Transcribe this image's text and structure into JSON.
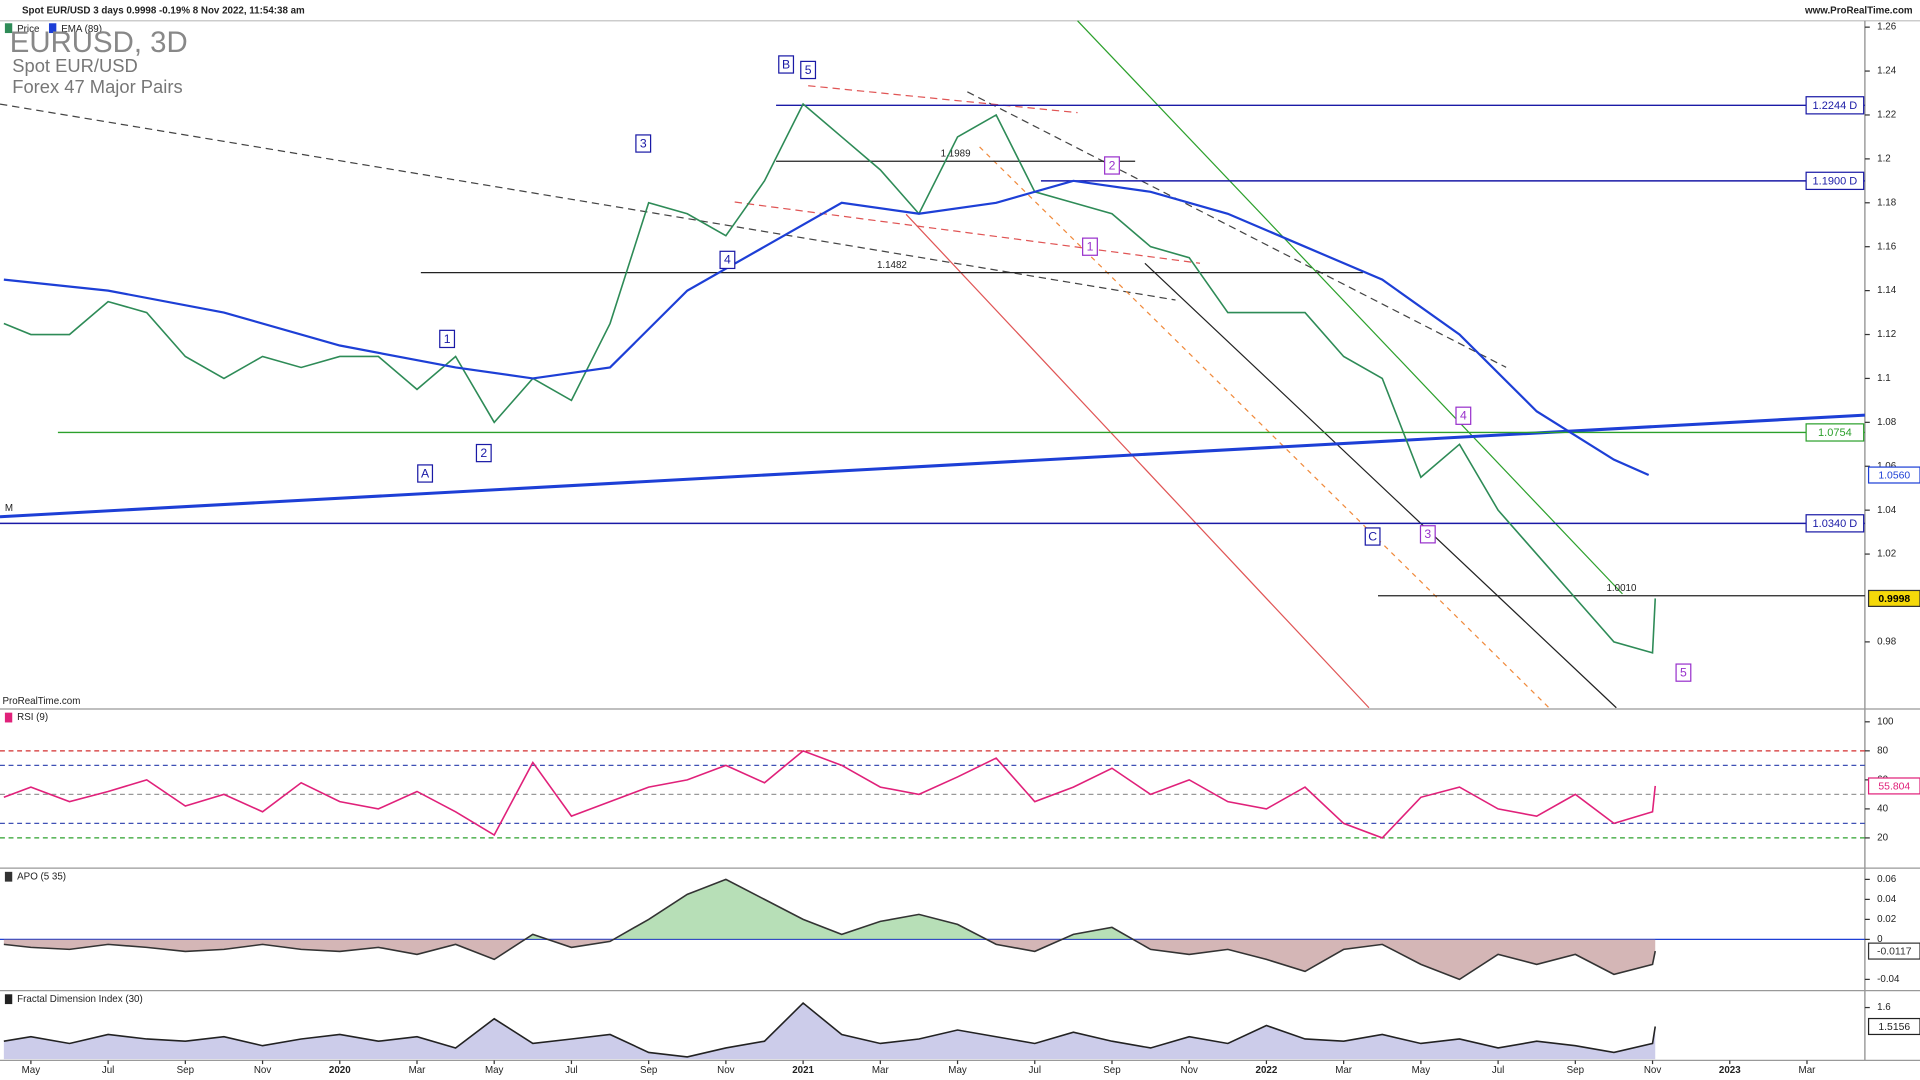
{
  "header": {
    "title": "Spot EUR/USD 3 days 0.9998 -0.19% 8 Nov 2022, 11:54:38 am",
    "site": "www.ProRealTime.com"
  },
  "chart_data": [
    {
      "type": "line",
      "title": "EURUSD, 3D",
      "subtitle": "Spot EUR/USD",
      "exchange": "Forex 47 Major Pairs",
      "watermark": "ProRealTime.com",
      "marker": "M",
      "xlim": [
        3.2,
        51.5
      ],
      "xticks": [
        {
          "value": 4,
          "label": "May"
        },
        {
          "value": 6,
          "label": "Jul"
        },
        {
          "value": 8,
          "label": "Sep"
        },
        {
          "value": 10,
          "label": "Nov"
        },
        {
          "value": 12,
          "label": "2020"
        },
        {
          "value": 14,
          "label": "Mar"
        },
        {
          "value": 16,
          "label": "May"
        },
        {
          "value": 18,
          "label": "Jul"
        },
        {
          "value": 20,
          "label": "Sep"
        },
        {
          "value": 22,
          "label": "Nov"
        },
        {
          "value": 24,
          "label": "2021"
        },
        {
          "value": 26,
          "label": "Mar"
        },
        {
          "value": 28,
          "label": "May"
        },
        {
          "value": 30,
          "label": "Jul"
        },
        {
          "value": 32,
          "label": "Sep"
        },
        {
          "value": 34,
          "label": "Nov"
        },
        {
          "value": 36,
          "label": "2022"
        },
        {
          "value": 38,
          "label": "Mar"
        },
        {
          "value": 40,
          "label": "May"
        },
        {
          "value": 42,
          "label": "Jul"
        },
        {
          "value": 44,
          "label": "Sep"
        },
        {
          "value": 46,
          "label": "Nov"
        },
        {
          "value": 48,
          "label": "2023"
        },
        {
          "value": 50,
          "label": "Mar"
        }
      ],
      "ylim": [
        0.95,
        1.264
      ],
      "yticks": [
        0.98,
        1.02,
        1.04,
        1.06,
        1.08,
        1.1,
        1.12,
        1.14,
        1.16,
        1.18,
        1.2,
        1.22,
        1.24,
        1.26
      ],
      "series": [
        {
          "name": "Price",
          "color": "#2e8b57",
          "highlight": "#f5d90a",
          "last_label": "0.9998",
          "x": [
            3.3,
            4,
            5,
            6,
            7,
            8,
            9,
            10,
            11,
            12,
            13,
            14,
            15,
            16,
            17,
            18,
            19,
            20,
            21,
            22,
            23,
            24,
            25,
            26,
            27,
            28,
            29,
            30,
            31,
            32,
            33,
            34,
            35,
            36,
            37,
            38,
            39,
            40,
            41,
            42,
            43,
            44,
            45,
            46,
            46.07
          ],
          "values": [
            1.125,
            1.12,
            1.12,
            1.135,
            1.13,
            1.11,
            1.1,
            1.11,
            1.105,
            1.11,
            1.11,
            1.095,
            1.11,
            1.08,
            1.1,
            1.09,
            1.125,
            1.18,
            1.175,
            1.165,
            1.19,
            1.225,
            1.21,
            1.195,
            1.175,
            1.21,
            1.22,
            1.185,
            1.18,
            1.175,
            1.16,
            1.155,
            1.13,
            1.13,
            1.13,
            1.11,
            1.1,
            1.055,
            1.07,
            1.04,
            1.02,
            1.0,
            0.98,
            0.975,
            0.9998
          ]
        },
        {
          "name": "EMA (89)",
          "color": "#1d3fd6",
          "last_label": "1.0560",
          "x": [
            3.3,
            6,
            9,
            12,
            15,
            17,
            19,
            21,
            23,
            25,
            27,
            29,
            31,
            33,
            35,
            37,
            39,
            41,
            43,
            45,
            45.9
          ],
          "values": [
            1.145,
            1.14,
            1.13,
            1.115,
            1.105,
            1.1,
            1.105,
            1.14,
            1.16,
            1.18,
            1.175,
            1.18,
            1.19,
            1.185,
            1.175,
            1.16,
            1.145,
            1.12,
            1.085,
            1.063,
            1.056
          ]
        }
      ],
      "levels": [
        {
          "value": 1.2244,
          "label": "1.2244 D",
          "color": "#1a1aa6",
          "from": 23.3
        },
        {
          "value": 1.19,
          "label": "1.1900 D",
          "color": "#1a1aa6",
          "from": 30.16
        },
        {
          "value": 1.034,
          "label": "1.0340 D",
          "color": "#1a1aa6"
        },
        {
          "value": 1.0754,
          "label": "1.0754",
          "color": "#2ca02c",
          "from": 4.7
        }
      ],
      "annotations": [
        {
          "text": "A",
          "x": 14.21,
          "y": 1.0567,
          "color": "#1a1aa6"
        },
        {
          "text": "1",
          "x": 14.78,
          "y": 1.118,
          "color": "#1a1aa6"
        },
        {
          "text": "2",
          "x": 15.73,
          "y": 1.066,
          "color": "#1a1aa6"
        },
        {
          "text": "3",
          "x": 19.86,
          "y": 1.207,
          "color": "#1a1aa6"
        },
        {
          "text": "4",
          "x": 22.04,
          "y": 1.154,
          "color": "#1a1aa6"
        },
        {
          "text": "B",
          "x": 23.56,
          "y": 1.243,
          "color": "#1a1aa6"
        },
        {
          "text": "5",
          "x": 24.13,
          "y": 1.2405,
          "color": "#1a1aa6"
        },
        {
          "text": "1",
          "x": 31.43,
          "y": 1.16,
          "color": "#9932cc"
        },
        {
          "text": "2",
          "x": 32.0,
          "y": 1.197,
          "color": "#9932cc"
        },
        {
          "text": "C",
          "x": 38.75,
          "y": 1.028,
          "color": "#1a1aa6"
        },
        {
          "text": "3",
          "x": 40.18,
          "y": 1.029,
          "color": "#9932cc"
        },
        {
          "text": "4",
          "x": 41.1,
          "y": 1.083,
          "color": "#9932cc"
        },
        {
          "text": "5",
          "x": 46.8,
          "y": 0.966,
          "color": "#9932cc"
        }
      ],
      "segments": [
        {
          "text": "1.1989",
          "value": 1.1989,
          "from": 23.3,
          "to": 32.6
        },
        {
          "text": "1.1482",
          "value": 1.1482,
          "from": 14.1,
          "to": 38.5
        },
        {
          "text": "1.0010",
          "value": 1.001,
          "from": 38.89,
          "to": 51.5
        }
      ]
    },
    {
      "type": "line",
      "title": "RSI (9)",
      "ylim": [
        0,
        108
      ],
      "yticks": [
        20,
        40,
        60,
        80,
        100
      ],
      "reference_lines": [
        {
          "value": 80,
          "color": "#d32f2f"
        },
        {
          "value": 70,
          "color": "#3f51b5"
        },
        {
          "value": 50,
          "color": "#999999"
        },
        {
          "value": 30,
          "color": "#3f51b5"
        },
        {
          "value": 20,
          "color": "#2ca02c"
        }
      ],
      "series": [
        {
          "name": "RSI",
          "color": "#e0217a",
          "last_label": "55.804",
          "x": [
            3.3,
            4,
            5,
            6,
            7,
            8,
            9,
            10,
            11,
            12,
            13,
            14,
            15,
            16,
            17,
            18,
            19,
            20,
            21,
            22,
            23,
            24,
            25,
            26,
            27,
            28,
            29,
            30,
            31,
            32,
            33,
            34,
            35,
            36,
            37,
            38,
            39,
            40,
            41,
            42,
            43,
            44,
            45,
            46,
            46.07
          ],
          "values": [
            48,
            55,
            45,
            52,
            60,
            42,
            50,
            38,
            58,
            45,
            40,
            52,
            38,
            22,
            72,
            35,
            45,
            55,
            60,
            70,
            58,
            80,
            70,
            55,
            50,
            62,
            75,
            45,
            55,
            68,
            50,
            60,
            45,
            40,
            55,
            30,
            20,
            48,
            55,
            40,
            35,
            50,
            30,
            38,
            55.804
          ]
        }
      ]
    },
    {
      "type": "area",
      "title": "APO (5 35)",
      "ylim": [
        -0.05,
        0.07
      ],
      "yticks": [
        -0.04,
        0,
        0.02,
        0.04,
        0.06
      ],
      "reference_lines": [
        {
          "value": 0,
          "color": "#1d3fd6"
        }
      ],
      "series": [
        {
          "name": "APO",
          "color": "#333333",
          "fill_positive": "#7cc47c",
          "fill_negative": "#b07a7a",
          "last_label": "-0.0117",
          "x": [
            3.3,
            4,
            5,
            6,
            7,
            8,
            9,
            10,
            11,
            12,
            13,
            14,
            15,
            16,
            17,
            18,
            19,
            20,
            21,
            22,
            23,
            24,
            25,
            26,
            27,
            28,
            29,
            30,
            31,
            32,
            33,
            34,
            35,
            36,
            37,
            38,
            39,
            40,
            41,
            42,
            43,
            44,
            45,
            46,
            46.07
          ],
          "values": [
            -0.005,
            -0.008,
            -0.01,
            -0.005,
            -0.008,
            -0.012,
            -0.01,
            -0.005,
            -0.01,
            -0.012,
            -0.008,
            -0.015,
            -0.005,
            -0.02,
            0.005,
            -0.008,
            -0.002,
            0.02,
            0.045,
            0.06,
            0.04,
            0.02,
            0.005,
            0.018,
            0.025,
            0.015,
            -0.005,
            -0.012,
            0.005,
            0.012,
            -0.01,
            -0.015,
            -0.01,
            -0.02,
            -0.032,
            -0.01,
            -0.005,
            -0.025,
            -0.04,
            -0.015,
            -0.025,
            -0.015,
            -0.035,
            -0.025,
            -0.0117
          ]
        }
      ]
    },
    {
      "type": "area",
      "title": "Fractal Dimension Index (30)",
      "ylim": [
        1.37,
        1.67
      ],
      "yticks": [
        1.6
      ],
      "series": [
        {
          "name": "FDI",
          "color": "#222222",
          "fill": "#8f8fd0",
          "last_label": "1.5156",
          "x": [
            3.3,
            4,
            5,
            6,
            7,
            8,
            9,
            10,
            11,
            12,
            13,
            14,
            15,
            16,
            17,
            18,
            19,
            20,
            21,
            22,
            23,
            24,
            25,
            26,
            27,
            28,
            29,
            30,
            31,
            32,
            33,
            34,
            35,
            36,
            37,
            38,
            39,
            40,
            41,
            42,
            43,
            44,
            45,
            46,
            46.07
          ],
          "values": [
            1.45,
            1.47,
            1.44,
            1.48,
            1.46,
            1.45,
            1.47,
            1.43,
            1.46,
            1.48,
            1.45,
            1.47,
            1.42,
            1.55,
            1.44,
            1.46,
            1.48,
            1.4,
            1.38,
            1.42,
            1.45,
            1.62,
            1.48,
            1.44,
            1.46,
            1.5,
            1.47,
            1.44,
            1.49,
            1.45,
            1.42,
            1.47,
            1.44,
            1.52,
            1.46,
            1.45,
            1.48,
            1.44,
            1.46,
            1.42,
            1.45,
            1.43,
            1.4,
            1.44,
            1.5156
          ]
        }
      ]
    }
  ]
}
